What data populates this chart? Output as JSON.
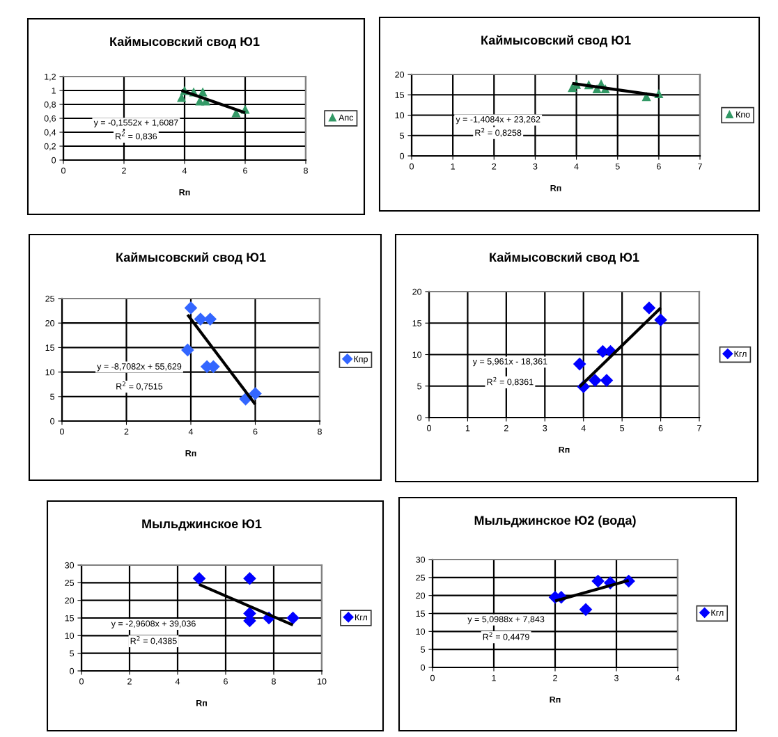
{
  "chart_data": [
    {
      "type": "scatter",
      "title": "Каймысовский свод Ю1",
      "xlabel": "Rп",
      "xlim": [
        0,
        8
      ],
      "xticks": [
        0,
        2,
        4,
        6,
        8
      ],
      "ylim": [
        0,
        1.2
      ],
      "yticks": [
        0,
        {
          "value": 0.2,
          "label": "0,2"
        },
        {
          "value": 0.4,
          "label": "0,4"
        },
        {
          "value": 0.6,
          "label": "0,6"
        },
        {
          "value": 0.8,
          "label": "0,8"
        },
        1,
        {
          "value": 1.2,
          "label": "1,2"
        }
      ],
      "grid": true,
      "legend": "right",
      "series": [
        {
          "marker": "triangle",
          "name": "Апс",
          "color": "#339966",
          "x": [
            3.9,
            4.0,
            4.3,
            4.5,
            4.6,
            4.7,
            5.7,
            6.0
          ],
          "values": [
            0.9,
            1.0,
            0.98,
            0.85,
            0.98,
            0.85,
            0.68,
            0.73
          ]
        },
        {
          "type": "line",
          "color": "#000000",
          "x": [
            3.9,
            6.0
          ],
          "values": [
            1.0,
            0.68
          ]
        }
      ],
      "annotations": [
        "y = -0,1552x + 1,6087",
        "R$^{2}$ = 0,836"
      ]
    },
    {
      "type": "scatter",
      "title": "Каймысовский свод Ю1",
      "xlabel": "Rп",
      "xlim": [
        0,
        7
      ],
      "xticks": [
        0,
        1,
        2,
        3,
        4,
        5,
        6,
        7
      ],
      "ylim": [
        0,
        20
      ],
      "yticks": [
        0,
        5,
        10,
        15,
        20
      ],
      "grid": true,
      "legend": "right",
      "series": [
        {
          "marker": "triangle",
          "name": "Кпо",
          "color": "#339966",
          "x": [
            3.9,
            4.0,
            4.3,
            4.5,
            4.6,
            4.7,
            5.7,
            6.0
          ],
          "values": [
            16.8,
            17.6,
            17.5,
            16.5,
            17.7,
            16.5,
            14.6,
            15.3
          ]
        },
        {
          "type": "line",
          "color": "#000000",
          "x": [
            3.9,
            6.0
          ],
          "values": [
            17.8,
            14.8
          ]
        }
      ],
      "annotations": [
        "y = -1,4084x + 23,262",
        "R$^{2}$ = 0,8258"
      ]
    },
    {
      "type": "scatter",
      "title": "Каймысовский свод Ю1",
      "xlabel": "Rп",
      "xlim": [
        0,
        8
      ],
      "xticks": [
        0,
        2,
        4,
        6,
        8
      ],
      "ylim": [
        0,
        25
      ],
      "yticks": [
        0,
        5,
        10,
        15,
        20,
        25
      ],
      "grid": true,
      "legend": "right",
      "series": [
        {
          "marker": "diamond",
          "name": "Кпр",
          "color": "#3366ff",
          "x": [
            3.9,
            4.0,
            4.3,
            4.5,
            4.6,
            4.7,
            5.7,
            6.0
          ],
          "values": [
            14.5,
            23.1,
            20.8,
            11.1,
            20.8,
            11.1,
            4.5,
            5.6
          ]
        },
        {
          "type": "line",
          "color": "#000000",
          "x": [
            3.9,
            6.0
          ],
          "values": [
            21.7,
            3.4
          ]
        }
      ],
      "annotations": [
        "y = -8,7082x + 55,629",
        "R$^{2}$ = 0,7515"
      ]
    },
    {
      "type": "scatter",
      "title": "Каймысовский свод Ю1",
      "xlabel": "Rп",
      "xlim": [
        0,
        7
      ],
      "xticks": [
        0,
        1,
        2,
        3,
        4,
        5,
        6,
        7
      ],
      "ylim": [
        0,
        20
      ],
      "yticks": [
        0,
        5,
        10,
        15,
        20
      ],
      "grid": true,
      "legend": "right",
      "series": [
        {
          "marker": "diamond",
          "name": "Кгл",
          "color": "#0000ff",
          "x": [
            3.9,
            4.0,
            4.3,
            4.5,
            4.6,
            4.7,
            5.7,
            6.0
          ],
          "values": [
            8.5,
            4.9,
            5.9,
            10.5,
            5.9,
            10.5,
            17.4,
            15.5
          ]
        },
        {
          "type": "line",
          "color": "#000000",
          "x": [
            3.9,
            6.0
          ],
          "values": [
            4.9,
            17.4
          ]
        }
      ],
      "annotations": [
        "y = 5,961x - 18,361",
        "R$^{2}$ = 0,8361"
      ]
    },
    {
      "type": "scatter",
      "title": "Мыльджинское Ю1",
      "xlabel": "Rп",
      "xlim": [
        0,
        10
      ],
      "xticks": [
        0,
        2,
        4,
        6,
        8,
        10
      ],
      "ylim": [
        0,
        30
      ],
      "yticks": [
        0,
        5,
        10,
        15,
        20,
        25,
        30
      ],
      "grid": true,
      "legend": "right",
      "series": [
        {
          "marker": "diamond",
          "name": "Кгл",
          "color": "#0000ff",
          "x": [
            4.9,
            7.0,
            7.0,
            7.0,
            7.8,
            8.8
          ],
          "values": [
            26.2,
            26.2,
            16.3,
            14.2,
            15.0,
            15.0
          ]
        },
        {
          "type": "line",
          "color": "#000000",
          "x": [
            4.9,
            8.8
          ],
          "values": [
            24.5,
            13.0
          ]
        }
      ],
      "annotations": [
        "y = -2,9608x + 39,036",
        "R$^{2}$ = 0,4385"
      ]
    },
    {
      "type": "scatter",
      "title": "Мыльджинское Ю2 (вода)",
      "xlabel": "Rп",
      "xlim": [
        0,
        4
      ],
      "xticks": [
        0,
        1,
        2,
        3,
        4
      ],
      "ylim": [
        0,
        30
      ],
      "yticks": [
        0,
        5,
        10,
        15,
        20,
        25,
        30
      ],
      "grid": true,
      "legend": "right",
      "series": [
        {
          "marker": "diamond",
          "name": "Кгл",
          "color": "#0000ff",
          "x": [
            2.0,
            2.1,
            2.5,
            2.7,
            2.9,
            3.2
          ],
          "values": [
            19.5,
            19.5,
            16.1,
            24.0,
            23.5,
            24.0
          ]
        },
        {
          "type": "line",
          "color": "#000000",
          "x": [
            2.0,
            3.2
          ],
          "values": [
            18.5,
            24.2
          ]
        }
      ],
      "annotations": [
        "y = 5,0988x + 7,843",
        "R$^{2}$ = 0,4479"
      ]
    }
  ]
}
